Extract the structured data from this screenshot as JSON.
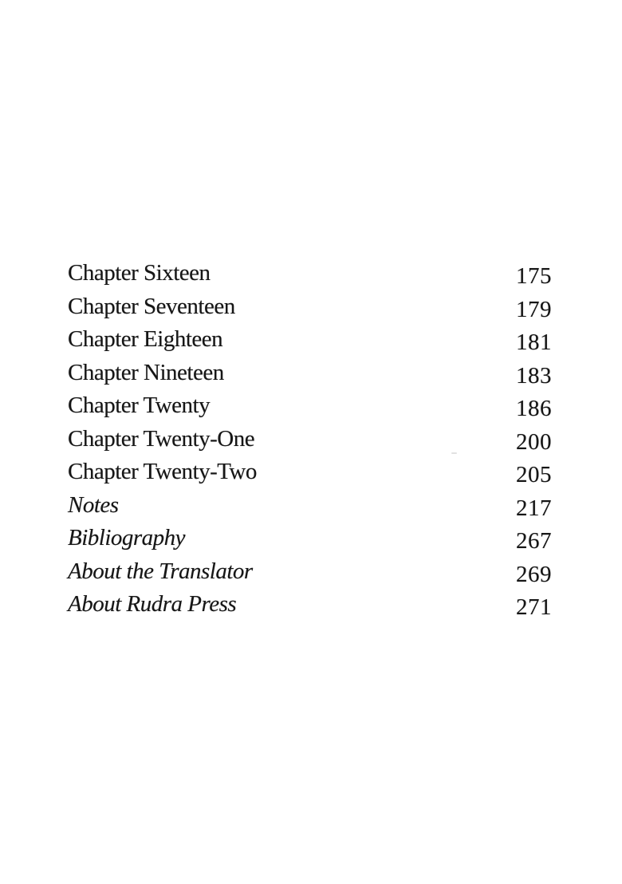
{
  "page": {
    "background": "#ffffff",
    "text_color": "#161616"
  },
  "toc": {
    "entries": [
      {
        "label": "Chapter Sixteen",
        "page": "175",
        "italic": false
      },
      {
        "label": "Chapter Seventeen",
        "page": "179",
        "italic": false
      },
      {
        "label": "Chapter Eighteen",
        "page": "181",
        "italic": false
      },
      {
        "label": "Chapter Nineteen",
        "page": "183",
        "italic": false
      },
      {
        "label": "Chapter Twenty",
        "page": "186",
        "italic": false
      },
      {
        "label": "Chapter Twenty-One",
        "page": "200",
        "italic": false
      },
      {
        "label": "Chapter Twenty-Two",
        "page": "205",
        "italic": false
      },
      {
        "label": "Notes",
        "page": "217",
        "italic": true
      },
      {
        "label": "Bibliography",
        "page": "267",
        "italic": true
      },
      {
        "label": "About the Translator",
        "page": "269",
        "italic": true
      },
      {
        "label": "About Rudra Press",
        "page": "271",
        "italic": true
      }
    ]
  }
}
